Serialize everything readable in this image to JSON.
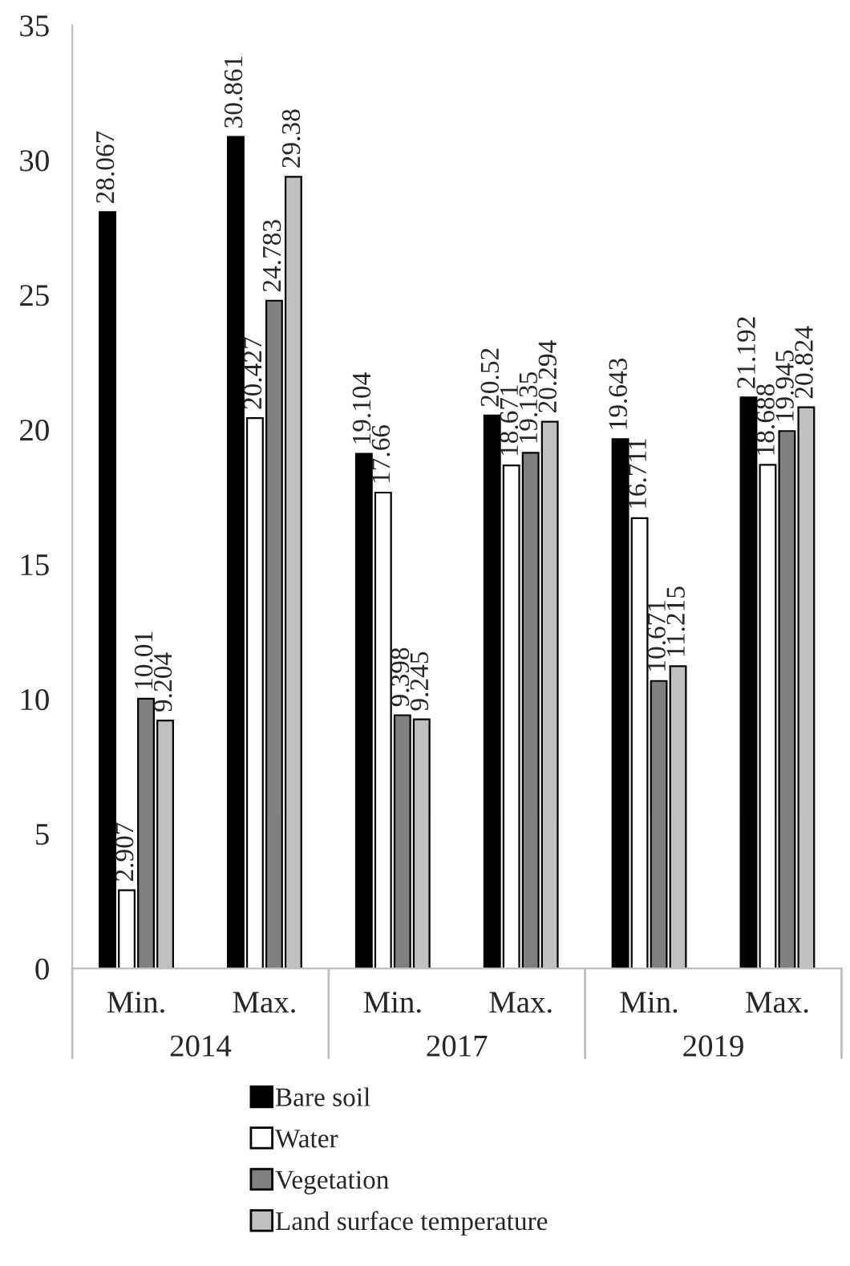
{
  "chart_data": {
    "type": "bar",
    "categories": [
      "Min.",
      "Max.",
      "Min.",
      "Max.",
      "Min.",
      "Max."
    ],
    "series": [
      {
        "name": "Bare soil",
        "color": "#000000",
        "values": [
          28.067,
          30.861,
          19.104,
          20.52,
          19.643,
          21.192
        ]
      },
      {
        "name": "Water",
        "color": "#ffffff",
        "values": [
          2.907,
          20.427,
          17.66,
          18.671,
          16.711,
          18.688
        ]
      },
      {
        "name": "Vegetation",
        "color": "#808080",
        "values": [
          10.01,
          24.783,
          9.398,
          19.135,
          10.671,
          19.945
        ]
      },
      {
        "name": "Land surface temperature",
        "color": "#c0c0c0",
        "values": [
          9.204,
          29.38,
          9.245,
          20.294,
          11.215,
          20.824
        ]
      }
    ],
    "annotations": [
      "2014",
      "2017",
      "2019"
    ],
    "ylim": [
      0,
      35
    ],
    "yticks": [
      0,
      5,
      10,
      15,
      20,
      25,
      30,
      35
    ],
    "data_labels": true,
    "grid": false,
    "legend": "bottom"
  }
}
